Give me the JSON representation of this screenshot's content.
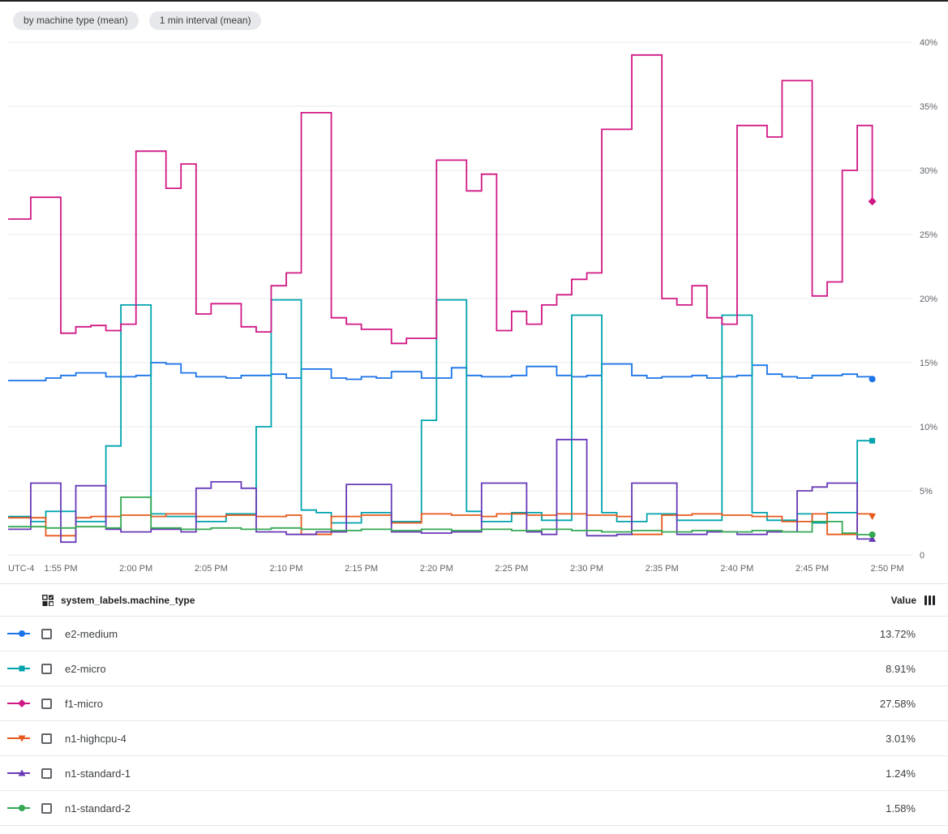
{
  "header": {
    "chips": [
      {
        "label": "by machine type (mean)"
      },
      {
        "label": "1 min interval (mean)"
      }
    ]
  },
  "chart_data": {
    "type": "line",
    "line_style": "step",
    "unit": "percent",
    "grid": true,
    "legend_position": "bottom-table",
    "ylim": [
      0,
      40
    ],
    "y_ticks": [
      {
        "value": 0,
        "label": "0"
      },
      {
        "value": 5,
        "label": "5%"
      },
      {
        "value": 10,
        "label": "10%"
      },
      {
        "value": 15,
        "label": "15%"
      },
      {
        "value": 20,
        "label": "20%"
      },
      {
        "value": 25,
        "label": "25%"
      },
      {
        "value": 30,
        "label": "30%"
      },
      {
        "value": 35,
        "label": "35%"
      },
      {
        "value": 40,
        "label": "40%"
      }
    ],
    "x_axis": {
      "timezone_label": "UTC-4",
      "start_time": "1:52 PM",
      "point_interval_minutes": 1,
      "tick_labels": [
        "1:55 PM",
        "2:00 PM",
        "2:05 PM",
        "2:10 PM",
        "2:15 PM",
        "2:20 PM",
        "2:25 PM",
        "2:30 PM",
        "2:35 PM",
        "2:40 PM",
        "2:45 PM",
        "2:50 PM"
      ]
    },
    "series": [
      {
        "name": "e2-medium",
        "color": "#1a73e8",
        "marker": "circle",
        "value": "13.72%",
        "values": [
          13.6,
          13.6,
          13.8,
          14.0,
          14.2,
          14.2,
          13.9,
          13.9,
          14.0,
          15.0,
          14.9,
          14.2,
          13.9,
          13.9,
          13.8,
          14.0,
          14.0,
          14.1,
          13.8,
          14.5,
          14.5,
          13.8,
          13.7,
          13.9,
          13.8,
          14.3,
          14.3,
          13.8,
          13.8,
          14.6,
          14.0,
          13.9,
          13.9,
          14.0,
          14.7,
          14.7,
          14.0,
          13.9,
          14.0,
          14.9,
          14.9,
          14.0,
          13.8,
          13.9,
          13.9,
          14.0,
          13.8,
          13.9,
          14.0,
          14.8,
          14.1,
          13.9,
          13.8,
          14.0,
          14.0,
          14.1,
          13.9,
          13.72
        ]
      },
      {
        "name": "e2-micro",
        "color": "#00a3ad",
        "marker": "square",
        "value": "8.91%",
        "values": [
          3.0,
          2.6,
          3.4,
          3.4,
          2.6,
          2.6,
          8.5,
          19.5,
          19.5,
          3.2,
          3.0,
          3.0,
          2.6,
          2.6,
          3.2,
          3.2,
          10.0,
          19.9,
          19.9,
          3.5,
          3.3,
          2.5,
          2.5,
          3.3,
          3.3,
          2.6,
          2.6,
          10.5,
          19.9,
          19.9,
          3.4,
          2.6,
          2.6,
          3.3,
          3.3,
          2.7,
          2.7,
          18.7,
          18.7,
          3.3,
          2.6,
          2.6,
          3.2,
          3.2,
          2.7,
          2.7,
          2.7,
          18.7,
          18.7,
          3.3,
          2.7,
          2.7,
          3.2,
          2.5,
          3.3,
          3.3,
          8.91,
          8.91
        ]
      },
      {
        "name": "f1-micro",
        "color": "#d01884",
        "marker": "diamond",
        "value": "27.58%",
        "values": [
          26.2,
          27.9,
          27.9,
          17.3,
          17.8,
          17.9,
          17.5,
          18.0,
          31.5,
          31.5,
          28.6,
          30.5,
          18.8,
          19.6,
          19.6,
          17.8,
          17.4,
          21.0,
          22.0,
          34.5,
          34.5,
          18.5,
          18.0,
          17.6,
          17.6,
          16.5,
          16.9,
          16.9,
          30.8,
          30.8,
          28.4,
          29.7,
          17.5,
          19.0,
          18.0,
          19.5,
          20.3,
          21.5,
          22.0,
          33.2,
          33.2,
          39.0,
          39.0,
          20.0,
          19.5,
          21.0,
          18.5,
          18.0,
          33.5,
          33.5,
          32.6,
          37.0,
          37.0,
          20.2,
          21.3,
          30.0,
          33.5,
          27.58
        ]
      },
      {
        "name": "n1-highcpu-4",
        "color": "#e8591c",
        "marker": "triangle-down",
        "value": "3.01%",
        "values": [
          2.9,
          2.9,
          1.5,
          1.5,
          2.9,
          3.0,
          3.0,
          3.1,
          3.1,
          3.0,
          3.2,
          3.2,
          3.0,
          3.0,
          3.1,
          3.1,
          3.0,
          3.0,
          3.1,
          1.6,
          1.6,
          3.0,
          3.0,
          3.1,
          3.1,
          2.5,
          2.5,
          3.2,
          3.2,
          3.1,
          3.1,
          3.0,
          3.2,
          3.2,
          3.1,
          3.1,
          3.2,
          3.2,
          3.1,
          3.1,
          3.0,
          1.6,
          1.6,
          3.1,
          3.1,
          3.2,
          3.2,
          3.1,
          3.1,
          3.0,
          3.0,
          2.6,
          2.6,
          3.2,
          1.6,
          1.6,
          3.2,
          3.01
        ]
      },
      {
        "name": "n1-standard-1",
        "color": "#673ab7",
        "marker": "triangle-up",
        "value": "1.24%",
        "values": [
          2.0,
          5.6,
          5.6,
          1.0,
          5.4,
          5.4,
          2.0,
          1.8,
          1.8,
          2.0,
          2.0,
          1.8,
          5.2,
          5.7,
          5.7,
          5.2,
          1.8,
          1.8,
          1.6,
          1.6,
          1.8,
          1.8,
          5.5,
          5.5,
          5.5,
          1.8,
          1.8,
          1.7,
          1.7,
          1.8,
          1.8,
          5.6,
          5.6,
          5.6,
          1.8,
          1.6,
          9.0,
          9.0,
          1.5,
          1.5,
          1.6,
          5.6,
          5.6,
          5.6,
          1.6,
          1.6,
          1.8,
          1.8,
          1.6,
          1.6,
          1.8,
          1.8,
          5.0,
          5.3,
          5.6,
          5.6,
          1.24,
          1.24
        ]
      },
      {
        "name": "n1-standard-2",
        "color": "#34a853",
        "marker": "circle",
        "value": "1.58%",
        "values": [
          2.2,
          2.2,
          2.1,
          2.1,
          2.2,
          2.2,
          2.1,
          4.5,
          4.5,
          2.1,
          2.1,
          2.0,
          2.0,
          2.1,
          2.1,
          2.0,
          2.0,
          2.1,
          2.1,
          2.0,
          2.0,
          1.9,
          1.9,
          2.0,
          2.0,
          1.9,
          1.9,
          2.0,
          2.0,
          1.9,
          1.9,
          2.0,
          2.0,
          1.9,
          1.9,
          2.0,
          2.0,
          1.9,
          1.9,
          1.8,
          1.8,
          1.9,
          1.9,
          1.8,
          1.8,
          1.9,
          1.9,
          1.8,
          1.8,
          1.9,
          1.9,
          1.8,
          1.8,
          2.6,
          2.6,
          1.7,
          1.58,
          1.58
        ]
      }
    ]
  },
  "legend_table": {
    "group_header": "system_labels.machine_type",
    "value_header": "Value"
  }
}
